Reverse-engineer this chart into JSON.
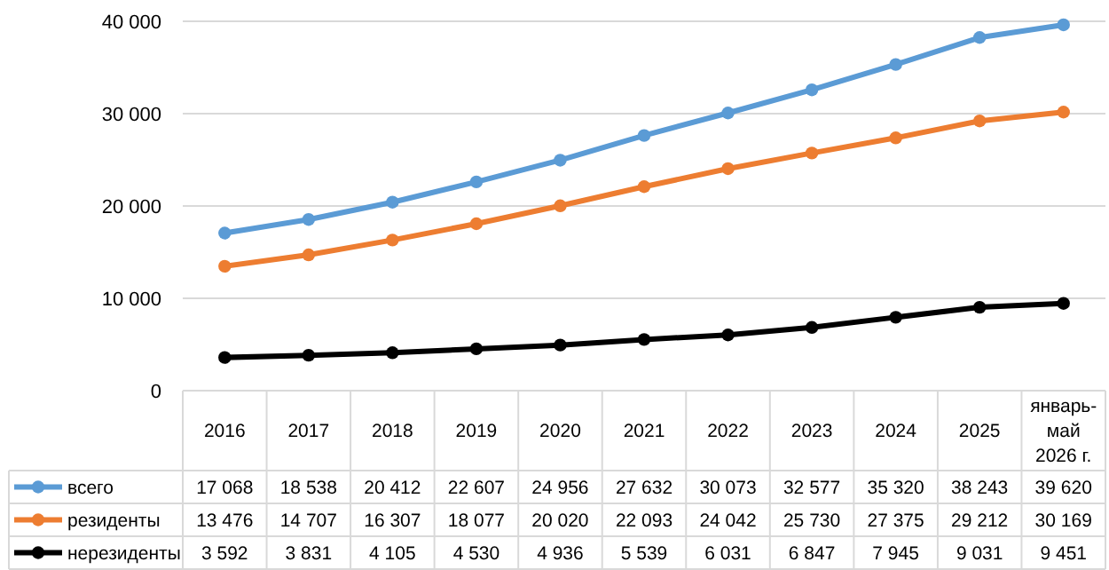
{
  "chart_data": {
    "type": "line",
    "categories": [
      "2016",
      "2017",
      "2018",
      "2019",
      "2020",
      "2021",
      "2022",
      "2023",
      "2024",
      "2025",
      "январь-май 2026 г."
    ],
    "series": [
      {
        "name": "всего",
        "color": "#5b9bd5",
        "values": [
          17068,
          18538,
          20412,
          22607,
          24956,
          27632,
          30073,
          32577,
          35320,
          38243,
          39620
        ]
      },
      {
        "name": "резиденты",
        "color": "#ed7d31",
        "values": [
          13476,
          14707,
          16307,
          18077,
          20020,
          22093,
          24042,
          25730,
          27375,
          29212,
          30169
        ]
      },
      {
        "name": "нерезиденты",
        "color": "#000000",
        "values": [
          3592,
          3831,
          4105,
          4530,
          4936,
          5539,
          6031,
          6847,
          7945,
          9031,
          9451
        ]
      }
    ],
    "ylim": [
      0,
      40000
    ],
    "yticks": [
      {
        "value": 0,
        "label": "0"
      },
      {
        "value": 10000,
        "label": "10 000"
      },
      {
        "value": 20000,
        "label": "20 000"
      },
      {
        "value": 30000,
        "label": "30 000"
      },
      {
        "value": 40000,
        "label": "40 000"
      }
    ],
    "grid": "y",
    "marker": "circle",
    "line_style": "solid",
    "data_labels": true,
    "legend": "bottom left"
  }
}
